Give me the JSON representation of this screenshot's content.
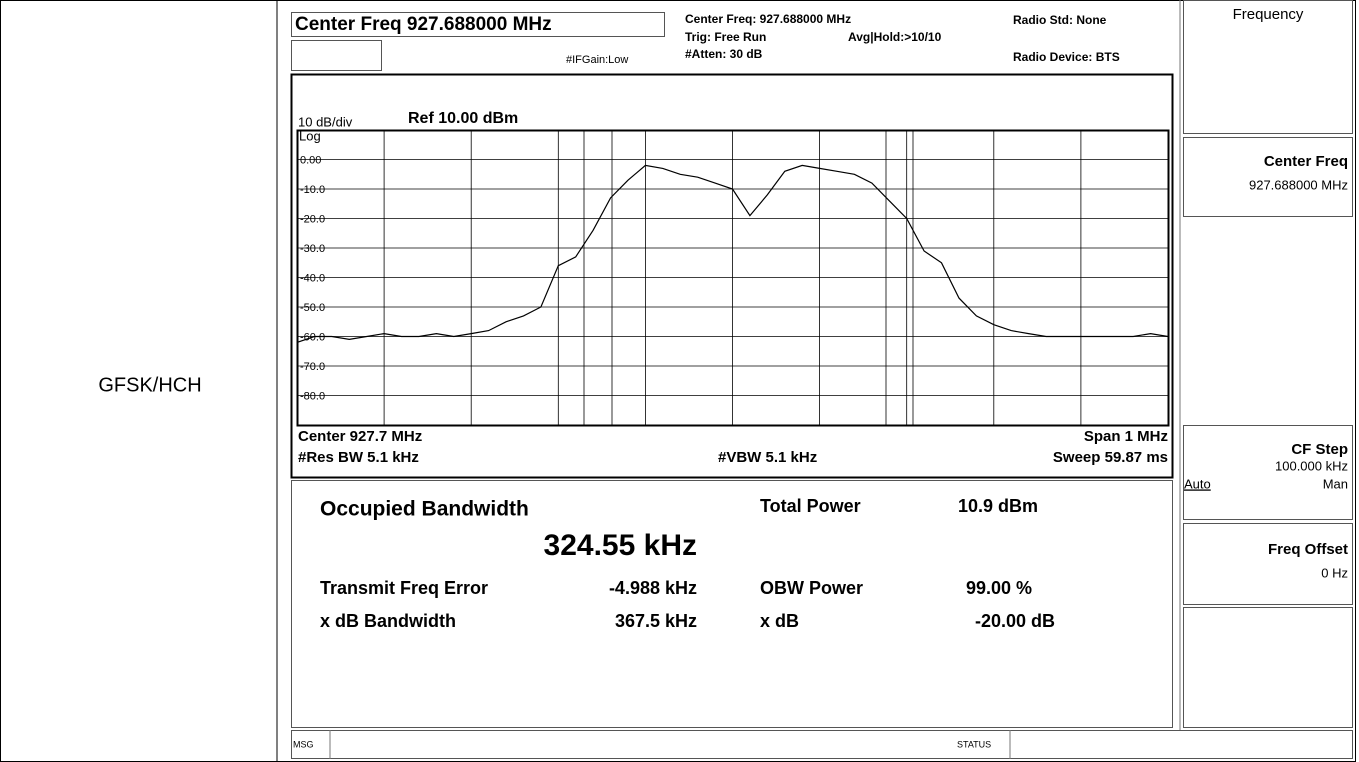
{
  "row_label": "GFSK/HCH",
  "header": {
    "center_box": "Center Freq 927.688000 MHz",
    "if_gain": "#IFGain:Low",
    "center_freq": "Center Freq: 927.688000 MHz",
    "trig": "Trig: Free Run",
    "avg_hold": "Avg|Hold:>10/10",
    "atten": "#Atten: 30 dB",
    "radio_std": "Radio Std: None",
    "radio_device": "Radio Device: BTS"
  },
  "chart_data": {
    "type": "line",
    "scale_label": "10 dB/div",
    "ref_label": "Ref 10.00 dBm",
    "log_label": "Log",
    "center_label": "Center  927.7 MHz",
    "rbw_label": "#Res BW  5.1 kHz",
    "vbw_label": "#VBW  5.1 kHz",
    "span_label": "Span 1 MHz",
    "sweep_label": "Sweep  59.87 ms",
    "color": "#000000",
    "xlim": [
      927.2,
      928.2
    ],
    "ylim": [
      -90,
      10
    ],
    "yticks": [
      {
        "value": 0,
        "label": "0.00"
      },
      {
        "value": -10,
        "label": "-10.0"
      },
      {
        "value": -20,
        "label": "-20.0"
      },
      {
        "value": -30,
        "label": "-30.0"
      },
      {
        "value": -40,
        "label": "-40.0"
      },
      {
        "value": -50,
        "label": "-50.0"
      },
      {
        "value": -60,
        "label": "-60.0"
      },
      {
        "value": -70,
        "label": "-70.0"
      },
      {
        "value": -80,
        "label": "-80.0"
      }
    ],
    "grid": true,
    "x": [
      927.2,
      927.22,
      927.24,
      927.26,
      927.28,
      927.3,
      927.32,
      927.34,
      927.36,
      927.38,
      927.4,
      927.42,
      927.44,
      927.46,
      927.48,
      927.5,
      927.52,
      927.54,
      927.56,
      927.58,
      927.6,
      927.62,
      927.64,
      927.66,
      927.68,
      927.7,
      927.72,
      927.74,
      927.76,
      927.78,
      927.8,
      927.82,
      927.84,
      927.86,
      927.88,
      927.9,
      927.92,
      927.94,
      927.96,
      927.98,
      928.0,
      928.02,
      928.04,
      928.06,
      928.08,
      928.1,
      928.12,
      928.14,
      928.16,
      928.18,
      928.2
    ],
    "values": [
      -62,
      -60,
      -60,
      -61,
      -60,
      -59,
      -60,
      -60,
      -59,
      -60,
      -59,
      -58,
      -55,
      -53,
      -50,
      -36,
      -33,
      -24,
      -13,
      -7,
      -2,
      -3,
      -5,
      -6,
      -8,
      -10,
      -19,
      -12,
      -4,
      -2,
      -3,
      -4,
      -5,
      -8,
      -14,
      -20,
      -31,
      -35,
      -47,
      -53,
      -56,
      -58,
      -59,
      -60,
      -60,
      -60,
      -60,
      -60,
      -60,
      -59,
      -60
    ]
  },
  "results": {
    "obw_title": "Occupied Bandwidth",
    "obw_value": "324.55 kHz",
    "total_power_label": "Total Power",
    "total_power_value": "10.9 dBm",
    "tx_err_label": "Transmit Freq Error",
    "tx_err_value": "-4.988 kHz",
    "obw_power_label": "OBW Power",
    "obw_power_value": "99.00 %",
    "xdb_bw_label": "x dB Bandwidth",
    "xdb_bw_value": "367.5 kHz",
    "xdb_label": "x dB",
    "xdb_value": "-20.00 dB"
  },
  "softkeys": {
    "menu": "Frequency",
    "center_freq": "Center Freq",
    "center_freq_value": "927.688000 MHz",
    "cf_step": "CF Step",
    "cf_step_value": "100.000 kHz",
    "auto": "Auto",
    "man": "Man",
    "freq_offset": "Freq Offset",
    "freq_offset_value": "0 Hz"
  },
  "status_bar": {
    "msg": "MSG",
    "status": "STATUS"
  }
}
